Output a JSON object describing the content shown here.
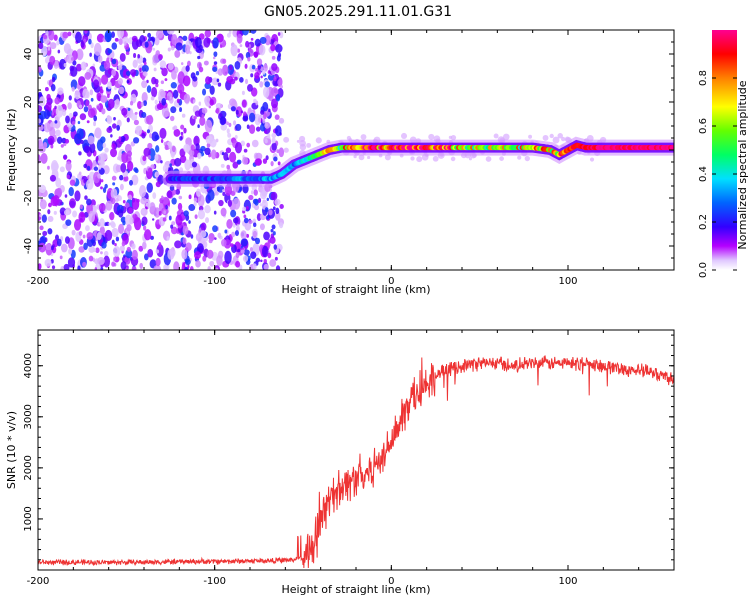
{
  "title": "GN05.2025.291.11.01.G31",
  "chart_data": [
    {
      "type": "heatmap",
      "title": "GN05.2025.291.11.01.G31",
      "xlabel": "Height of straight line (km)",
      "ylabel": "Frequency (Hz)",
      "xlim": [
        -200,
        160
      ],
      "ylim": [
        -50,
        50
      ],
      "xticks": [
        -200,
        -100,
        0,
        100
      ],
      "yticks": [
        -40,
        -20,
        0,
        20,
        40
      ],
      "colorbar": {
        "label": "Normalized spectral amplitude",
        "range": [
          0.0,
          1.0
        ],
        "ticks": [
          0.0,
          0.2,
          0.4,
          0.6,
          0.8
        ],
        "colors": [
          "#ffffff",
          "#b48cff",
          "#6a00ff",
          "#0000ff",
          "#00c8ff",
          "#00ff80",
          "#80ff00",
          "#ffff00",
          "#ff8000",
          "#ff0000",
          "#ff0080"
        ]
      },
      "noise_region_x": [
        -200,
        -65
      ],
      "trace": {
        "x": [
          -125,
          -100,
          -85,
          -75,
          -68,
          -62,
          -55,
          -45,
          -35,
          -28,
          -20,
          0,
          20,
          50,
          80,
          90,
          95,
          100,
          105,
          110,
          120,
          140,
          160
        ],
        "y": [
          -12,
          -12,
          -12,
          -12,
          -12,
          -10,
          -6,
          -3,
          0,
          1,
          1,
          1,
          1,
          1,
          1,
          0,
          -2,
          0,
          2,
          1,
          1,
          1,
          1
        ],
        "amplitude": [
          0.25,
          0.25,
          0.3,
          0.3,
          0.35,
          0.35,
          0.3,
          0.45,
          0.8,
          0.6,
          0.85,
          0.85,
          0.9,
          0.55,
          0.65,
          0.7,
          0.8,
          0.85,
          0.9,
          0.95,
          0.98,
          0.98,
          0.98
        ]
      }
    },
    {
      "type": "line",
      "xlabel": "Height of straight line (km)",
      "ylabel": "SNR (10 * v/v)",
      "xlim": [
        -200,
        160
      ],
      "ylim": [
        0,
        4700
      ],
      "xticks": [
        -200,
        -100,
        0,
        100
      ],
      "yticks": [
        1000,
        2000,
        3000,
        4000
      ],
      "color": "#ee3333",
      "series": [
        {
          "name": "SNR",
          "x": [
            -200,
            -150,
            -100,
            -70,
            -55,
            -50,
            -45,
            -40,
            -35,
            -30,
            -25,
            -20,
            -15,
            -10,
            -5,
            0,
            5,
            10,
            15,
            20,
            25,
            30,
            40,
            50,
            60,
            70,
            80,
            90,
            100,
            110,
            120,
            130,
            140,
            150,
            160
          ],
          "y": [
            150,
            150,
            170,
            180,
            200,
            220,
            450,
            900,
            1400,
            1600,
            1700,
            1800,
            1900,
            2000,
            2200,
            2600,
            2950,
            3200,
            3450,
            3650,
            3800,
            3900,
            4000,
            4050,
            4050,
            4000,
            4050,
            4050,
            4050,
            4050,
            4000,
            3950,
            3900,
            3850,
            3750
          ]
        }
      ]
    }
  ]
}
